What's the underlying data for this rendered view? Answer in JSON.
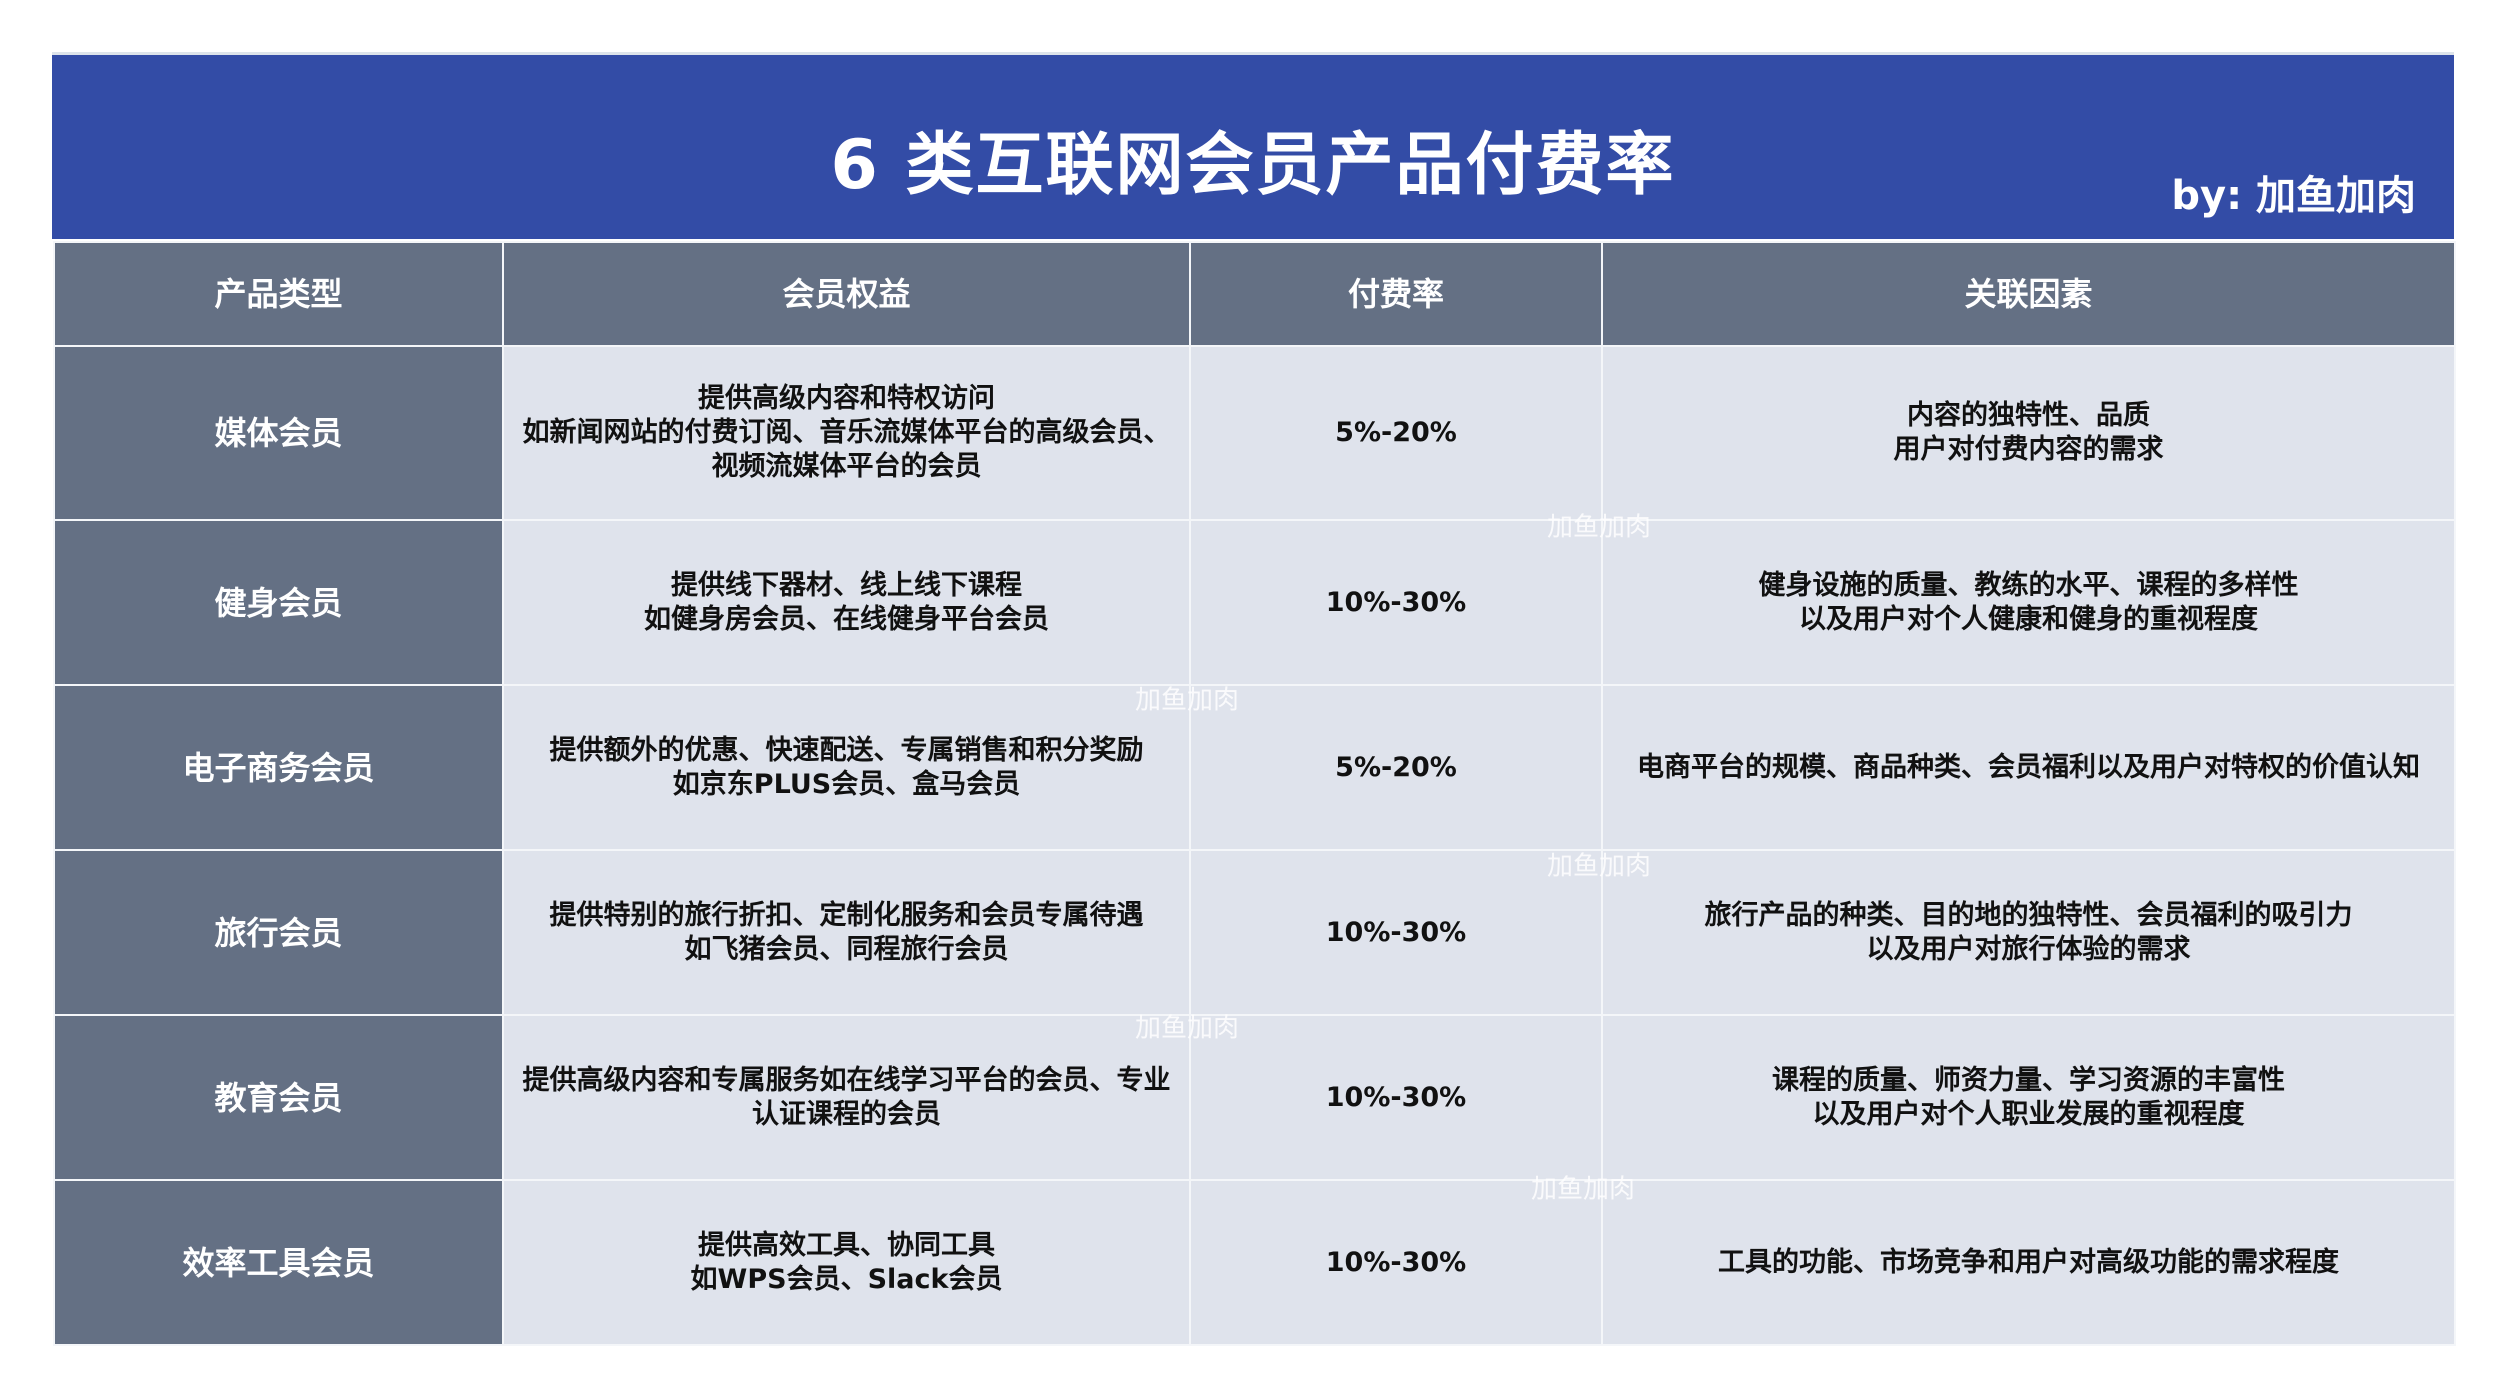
{
  "header": {
    "title": "6 类互联网会员产品付费率",
    "byline": "by: 加鱼加肉"
  },
  "columns": [
    "产品类型",
    "会员权益",
    "付费率",
    "关联因素"
  ],
  "rows": [
    {
      "type": "媒体会员",
      "benefits": [
        "提供高级内容和特权访问",
        "如新闻网站的付费订阅、音乐流媒体平台的高级会员、",
        "视频流媒体平台的会员"
      ],
      "rate": "5%-20%",
      "factors": [
        "内容的独特性、品质",
        "用户对付费内容的需求"
      ]
    },
    {
      "type": "健身会员",
      "benefits": [
        "提供线下器材、线上线下课程",
        "如健身房会员、在线健身平台会员"
      ],
      "rate": "10%-30%",
      "factors": [
        "健身设施的质量、教练的水平、课程的多样性",
        "以及用户对个人健康和健身的重视程度"
      ]
    },
    {
      "type": "电子商务会员",
      "benefits": [
        "提供额外的优惠、快速配送、专属销售和积分奖励",
        "如京东PLUS会员、盒马会员"
      ],
      "rate": "5%-20%",
      "factors": [
        "电商平台的规模、商品种类、会员福利以及用户对特权的价值认知"
      ]
    },
    {
      "type": "旅行会员",
      "benefits": [
        "提供特别的旅行折扣、定制化服务和会员专属待遇",
        "如飞猪会员、同程旅行会员"
      ],
      "rate": "10%-30%",
      "factors": [
        "旅行产品的种类、目的地的独特性、会员福利的吸引力",
        "以及用户对旅行体验的需求"
      ]
    },
    {
      "type": "教育会员",
      "benefits": [
        "提供高级内容和专属服务如在线学习平台的会员、专业",
        "认证课程的会员"
      ],
      "rate": "10%-30%",
      "factors": [
        "课程的质量、师资力量、学习资源的丰富性",
        "以及用户对个人职业发展的重视程度"
      ]
    },
    {
      "type": "效率工具会员",
      "benefits": [
        "提供高效工具、协同工具",
        "如WPS会员、Slack会员"
      ],
      "rate": "10%-30%",
      "factors": [
        "工具的功能、市场竞争和用户对高级功能的需求程度"
      ]
    }
  ],
  "watermark": "加鱼加肉",
  "colors": {
    "banner": "#334ca6",
    "header_cell": "#647084",
    "body_cell": "#dfe3ec"
  }
}
